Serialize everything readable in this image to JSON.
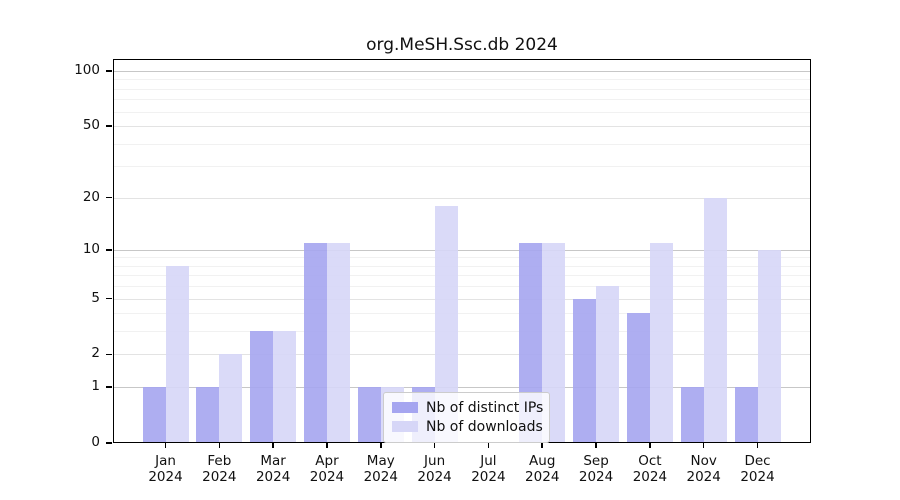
{
  "chart_data": {
    "type": "bar",
    "title": "org.MeSH.Ssc.db 2024",
    "categories": [
      "Jan 2024",
      "Feb 2024",
      "Mar 2024",
      "Apr 2024",
      "May 2024",
      "Jun 2024",
      "Jul 2024",
      "Aug 2024",
      "Sep 2024",
      "Oct 2024",
      "Nov 2024",
      "Dec 2024"
    ],
    "series": [
      {
        "name": "Nb of distinct IPs",
        "color": "#a5a5f0",
        "values": [
          1,
          1,
          3,
          11,
          1,
          1,
          0,
          11,
          5,
          4,
          1,
          1
        ]
      },
      {
        "name": "Nb of downloads",
        "color": "#d6d6f7",
        "values": [
          8,
          2,
          3,
          11,
          1,
          18,
          0,
          11,
          6,
          11,
          20,
          10
        ]
      }
    ],
    "y_axis": {
      "scale": "log1p",
      "ylim": [
        0,
        100
      ],
      "ticks_labeled": [
        0,
        1,
        2,
        5,
        10,
        20,
        50,
        100
      ],
      "grid_major": [
        1,
        10,
        100
      ],
      "grid_mid": [
        2,
        5,
        20,
        50
      ],
      "grid_minor": [
        3,
        4,
        6,
        7,
        8,
        9,
        30,
        40,
        60,
        70,
        80,
        90
      ]
    },
    "legend_position": "inside-bottom-center",
    "grid": true,
    "background": "#ffffff"
  }
}
